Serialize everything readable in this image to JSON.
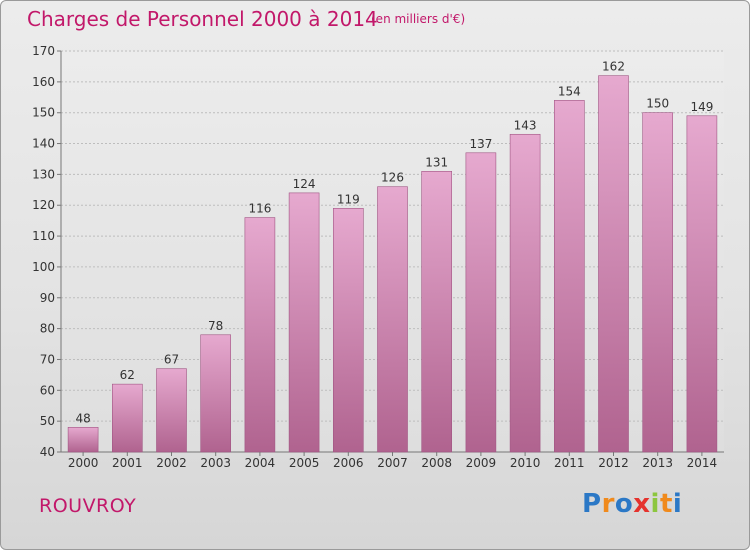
{
  "header": {
    "title": "Charges de Personnel 2000 à 2014",
    "subtitle": "(en milliers d'€)"
  },
  "footer": {
    "town": "ROUVROY",
    "logo": "Proxiti",
    "logo_letters": [
      {
        "ch": "P",
        "color": "#2b78c6"
      },
      {
        "ch": "r",
        "color": "#f08a1c"
      },
      {
        "ch": "o",
        "color": "#2b78c6"
      },
      {
        "ch": "x",
        "color": "#e5322d"
      },
      {
        "ch": "i",
        "color": "#8cc63f"
      },
      {
        "ch": "t",
        "color": "#f08a1c"
      },
      {
        "ch": "i",
        "color": "#2b78c6"
      }
    ]
  },
  "colors": {
    "accent": "#c2186a",
    "bar_top": "#e6a9cf",
    "bar_bottom": "#b0638f",
    "bar_edge": "#a05583",
    "grid": "#bdbdbd",
    "axis_text": "#333333"
  },
  "chart_data": {
    "type": "bar",
    "title": "Charges de Personnel 2000 à 2014",
    "subtitle": "(en milliers d'€)",
    "categories": [
      "2000",
      "2001",
      "2002",
      "2003",
      "2004",
      "2005",
      "2006",
      "2007",
      "2008",
      "2009",
      "2010",
      "2011",
      "2012",
      "2013",
      "2014"
    ],
    "values": [
      48,
      62,
      67,
      78,
      116,
      124,
      119,
      126,
      131,
      137,
      143,
      154,
      162,
      150,
      149
    ],
    "ylim": [
      40,
      170
    ],
    "yticks": [
      40,
      50,
      60,
      70,
      80,
      90,
      100,
      110,
      120,
      130,
      140,
      150,
      160,
      170
    ],
    "grid": true,
    "legend": "none"
  }
}
